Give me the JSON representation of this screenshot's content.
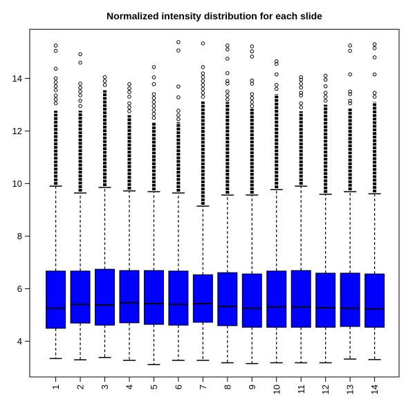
{
  "chart_data": {
    "type": "boxplot",
    "title": "Normalized intensity distribution for each slide",
    "xlabel": "",
    "ylabel": "",
    "x_tick_labels": [
      "1",
      "2",
      "3",
      "4",
      "5",
      "6",
      "7",
      "8",
      "9",
      "10",
      "11",
      "12",
      "13",
      "14"
    ],
    "y_ticks": [
      4,
      6,
      8,
      10,
      12,
      14
    ],
    "ylim": [
      2.64,
      15.87
    ],
    "grid": false,
    "legend": "none",
    "box_fill": "#0000FF",
    "stroke_color": "#000000",
    "background": "#FFFFFF",
    "whisker_style": "dashed",
    "series": [
      {
        "label": "1",
        "whisker_low": 3.34,
        "q1": 4.49,
        "median": 5.25,
        "q3": 6.67,
        "whisker_high": 9.9,
        "dense_outliers_to": 12.77,
        "outliers": [
          15.25,
          15.05,
          14.37,
          14.0,
          13.85,
          13.7,
          13.55,
          13.35,
          13.2,
          13.05
        ]
      },
      {
        "label": "2",
        "whisker_low": 3.29,
        "q1": 4.69,
        "median": 5.4,
        "q3": 6.67,
        "whisker_high": 9.64,
        "dense_outliers_to": 12.77,
        "outliers": [
          14.92,
          14.6,
          13.8,
          13.65,
          13.5,
          13.35,
          13.15,
          12.95
        ]
      },
      {
        "label": "3",
        "whisker_low": 3.38,
        "q1": 4.61,
        "median": 5.38,
        "q3": 6.74,
        "whisker_high": 9.85,
        "dense_outliers_to": 13.55,
        "outliers": [
          14.05,
          13.9,
          13.75
        ]
      },
      {
        "label": "4",
        "whisker_low": 3.27,
        "q1": 4.7,
        "median": 5.46,
        "q3": 6.69,
        "whisker_high": 9.72,
        "dense_outliers_to": 12.6,
        "outliers": [
          13.78,
          13.62,
          13.48,
          13.3,
          13.05,
          12.9,
          12.75
        ]
      },
      {
        "label": "5",
        "whisker_low": 3.11,
        "q1": 4.64,
        "median": 5.43,
        "q3": 6.69,
        "whisker_high": 9.69,
        "dense_outliers_to": 12.33,
        "outliers": [
          14.43,
          14.04,
          13.78,
          13.4,
          13.25,
          13.1,
          12.95,
          12.8,
          12.65,
          12.5
        ]
      },
      {
        "label": "6",
        "whisker_low": 3.27,
        "q1": 4.61,
        "median": 5.4,
        "q3": 6.67,
        "whisker_high": 9.64,
        "dense_outliers_to": 12.33,
        "outliers": [
          15.38,
          15.06,
          13.69,
          13.28,
          12.77,
          12.6,
          12.45
        ]
      },
      {
        "label": "7",
        "whisker_low": 3.27,
        "q1": 4.72,
        "median": 5.43,
        "q3": 6.53,
        "whisker_high": 9.14,
        "dense_outliers_to": 13.12,
        "outliers": [
          15.33,
          14.43,
          14.19,
          14.05,
          13.9,
          13.75,
          13.6,
          13.45,
          13.3
        ]
      },
      {
        "label": "8",
        "whisker_low": 3.18,
        "q1": 4.59,
        "median": 5.32,
        "q3": 6.61,
        "whisker_high": 9.56,
        "dense_outliers_to": 13.1,
        "outliers": [
          15.25,
          15.1,
          14.75,
          14.2,
          13.9,
          13.8,
          13.5,
          13.35,
          13.2
        ]
      },
      {
        "label": "9",
        "whisker_low": 3.15,
        "q1": 4.53,
        "median": 5.25,
        "q3": 6.56,
        "whisker_high": 9.56,
        "dense_outliers_to": 12.85,
        "outliers": [
          15.22,
          15.03,
          14.83,
          13.92,
          13.8,
          13.4,
          13.25,
          13.1,
          12.95
        ]
      },
      {
        "label": "10",
        "whisker_low": 3.18,
        "q1": 4.53,
        "median": 5.3,
        "q3": 6.67,
        "whisker_high": 9.77,
        "dense_outliers_to": 13.4,
        "outliers": [
          14.65,
          14.55,
          14.15,
          13.75,
          13.6
        ]
      },
      {
        "label": "11",
        "whisker_low": 3.18,
        "q1": 4.53,
        "median": 5.3,
        "q3": 6.69,
        "whisker_high": 9.9,
        "dense_outliers_to": 12.75,
        "outliers": [
          14.05,
          13.95,
          13.8,
          13.65,
          13.45,
          13.35,
          13.05,
          12.9
        ]
      },
      {
        "label": "12",
        "whisker_low": 3.18,
        "q1": 4.53,
        "median": 5.27,
        "q3": 6.59,
        "whisker_high": 9.59,
        "dense_outliers_to": 13.0,
        "outliers": [
          14.1,
          13.95,
          13.7,
          13.45,
          13.3,
          13.15
        ]
      },
      {
        "label": "13",
        "whisker_low": 3.32,
        "q1": 4.56,
        "median": 5.25,
        "q3": 6.59,
        "whisker_high": 9.69,
        "dense_outliers_to": 12.85,
        "outliers": [
          15.25,
          15.05,
          14.15,
          13.5,
          13.4,
          13.15,
          13.05
        ]
      },
      {
        "label": "14",
        "whisker_low": 3.3,
        "q1": 4.53,
        "median": 5.23,
        "q3": 6.56,
        "whisker_high": 9.61,
        "dense_outliers_to": 13.1,
        "outliers": [
          15.3,
          15.15,
          14.8,
          14.15,
          13.45,
          13.3
        ]
      }
    ]
  }
}
